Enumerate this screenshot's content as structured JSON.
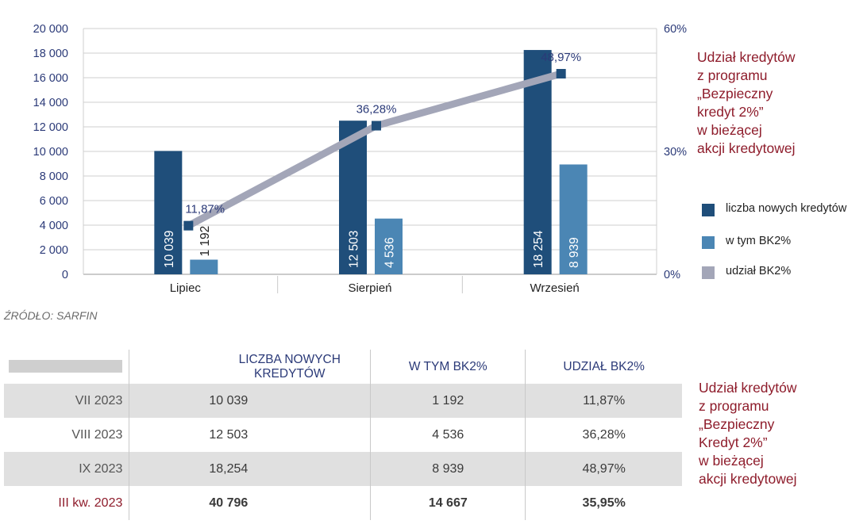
{
  "chart_data": {
    "type": "bar",
    "categories": [
      "Lipiec",
      "Sierpień",
      "Wrzesień"
    ],
    "series": [
      {
        "name": "liczba nowych kredytów",
        "type": "bar",
        "axis": "left",
        "values": [
          10039,
          12503,
          18254
        ],
        "labels": [
          "10 039",
          "12 503",
          "18 254"
        ],
        "color": "#1f4e7a"
      },
      {
        "name": "w tym BK2%",
        "type": "bar",
        "axis": "left",
        "values": [
          1192,
          4536,
          8939
        ],
        "labels": [
          "1 192",
          "4 536",
          "8 939"
        ],
        "color": "#4b86b4"
      },
      {
        "name": "udział BK2%",
        "type": "line",
        "axis": "right",
        "values": [
          11.87,
          36.28,
          48.97
        ],
        "labels": [
          "11,87%",
          "36,28%",
          "48,97%"
        ],
        "color": "#a3a6b8"
      }
    ],
    "ylim": [
      0,
      20000
    ],
    "y2lim": [
      0,
      60
    ],
    "yticks": [
      "0",
      "2 000",
      "4 000",
      "6 000",
      "8 000",
      "10 000",
      "12 000",
      "14 000",
      "16 000",
      "18 000",
      "20 000"
    ],
    "y2ticks": [
      "0%",
      "30%",
      "60%"
    ],
    "grid": true,
    "legend": "right"
  },
  "source": "ŹRÓDŁO: SARFIN",
  "side_note_lines": [
    "Udział kredytów",
    "z programu",
    "„Bezpieczny",
    "kredyt 2%”",
    "w bieżącej",
    "akcji kredytowej"
  ],
  "table_note_lines": [
    "Udział kredytów",
    "z programu",
    "„Bezpieczny",
    "Kredyt 2%”",
    "w bieżącej",
    "akcji kredytowej"
  ],
  "legend": [
    "liczba nowych kredytów",
    "w tym BK2%",
    "udział BK2%"
  ],
  "table": {
    "headers": [
      "LICZBA NOWYCH KREDYTÓW",
      "W TYM BK2%",
      "UDZIAŁ BK2%"
    ],
    "rows": [
      {
        "period": "VII 2023",
        "count": "10 039",
        "bk2": "1 192",
        "share": "11,87%"
      },
      {
        "period": "VIII 2023",
        "count": "12 503",
        "bk2": "4 536",
        "share": "36,28%"
      },
      {
        "period": "IX 2023",
        "count": "18,254",
        "bk2": "8 939",
        "share": "48,97%"
      },
      {
        "period": "III kw. 2023",
        "count": "40 796",
        "bk2": "14 667",
        "share": "35,95%"
      }
    ]
  },
  "colors": {
    "dark_bar": "#1f4e7a",
    "light_bar": "#4b86b4",
    "line": "#a3a6b8",
    "accent": "#8e1c2b"
  }
}
